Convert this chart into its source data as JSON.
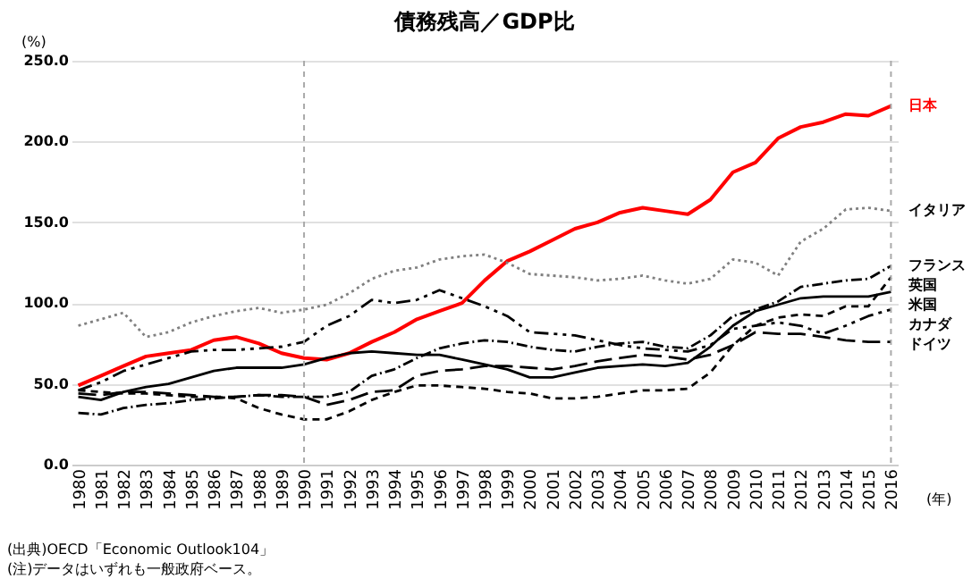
{
  "chart_data": {
    "type": "line",
    "title": "債務残高／GDP比",
    "ylabel": "(%)",
    "xlabel": "(年)",
    "categories": [
      "1980",
      "1981",
      "1982",
      "1983",
      "1984",
      "1985",
      "1986",
      "1987",
      "1988",
      "1989",
      "1990",
      "1991",
      "1992",
      "1993",
      "1994",
      "1995",
      "1996",
      "1997",
      "1998",
      "1999",
      "2000",
      "2001",
      "2002",
      "2003",
      "2004",
      "2005",
      "2006",
      "2007",
      "2008",
      "2009",
      "2010",
      "2011",
      "2012",
      "2013",
      "2014",
      "2015",
      "2016"
    ],
    "series": [
      {
        "name": "日本",
        "color": "#ff0000",
        "line_style": "solid",
        "values": [
          49,
          55,
          61,
          67,
          69,
          71,
          77,
          79,
          75,
          69,
          66,
          65,
          69,
          76,
          82,
          90,
          95,
          100,
          114,
          126,
          132,
          139,
          146,
          150,
          156,
          159,
          157,
          155,
          164,
          181,
          187,
          202,
          209,
          212,
          217,
          216,
          222
        ]
      },
      {
        "name": "イタリア",
        "color": "#808080",
        "line_style": "dotted",
        "values": [
          86,
          90,
          94,
          79,
          82,
          88,
          92,
          95,
          97,
          94,
          96,
          99,
          106,
          115,
          120,
          122,
          127,
          129,
          130,
          125,
          118,
          117,
          116,
          114,
          115,
          117,
          114,
          112,
          115,
          127,
          125,
          117,
          138,
          146,
          158,
          159,
          157
        ]
      },
      {
        "name": "フランス",
        "color": "#000000",
        "line_style": "dashed",
        "values": [
          32,
          31,
          35,
          37,
          38,
          40,
          41,
          42,
          43,
          42,
          42,
          42,
          45,
          55,
          59,
          66,
          72,
          75,
          77,
          76,
          73,
          71,
          70,
          73,
          75,
          76,
          73,
          72,
          80,
          92,
          96,
          101,
          110,
          112,
          114,
          115,
          123
        ]
      },
      {
        "name": "英国",
        "color": "#000000",
        "line_style": "dashed",
        "values": [
          46,
          45,
          44,
          44,
          43,
          42,
          42,
          41,
          35,
          31,
          28,
          28,
          33,
          40,
          45,
          49,
          49,
          48,
          47,
          45,
          44,
          41,
          41,
          42,
          44,
          46,
          46,
          47,
          57,
          74,
          86,
          91,
          93,
          92,
          98,
          98,
          116
        ]
      },
      {
        "name": "米国",
        "color": "#000000",
        "line_style": "solid",
        "values": [
          42,
          40,
          45,
          48,
          50,
          54,
          58,
          60,
          60,
          60,
          62,
          66,
          69,
          70,
          69,
          68,
          68,
          65,
          62,
          59,
          54,
          54,
          57,
          60,
          61,
          62,
          61,
          63,
          73,
          86,
          95,
          99,
          103,
          104,
          104,
          104,
          107
        ]
      },
      {
        "name": "カナダ",
        "color": "#000000",
        "line_style": "dashed",
        "values": [
          46,
          51,
          58,
          62,
          66,
          70,
          71,
          71,
          72,
          73,
          76,
          86,
          92,
          102,
          100,
          102,
          108,
          103,
          98,
          92,
          82,
          81,
          80,
          77,
          74,
          72,
          71,
          70,
          74,
          84,
          86,
          88,
          86,
          81,
          86,
          92,
          96
        ]
      },
      {
        "name": "ドイツ",
        "color": "#000000",
        "line_style": "dashed",
        "values": [
          44,
          43,
          45,
          45,
          44,
          43,
          42,
          42,
          43,
          43,
          42,
          37,
          40,
          45,
          46,
          55,
          58,
          59,
          61,
          61,
          60,
          59,
          61,
          64,
          66,
          68,
          67,
          65,
          68,
          74,
          82,
          81,
          81,
          79,
          77,
          76,
          76
        ]
      }
    ],
    "ylim": [
      0,
      250
    ],
    "yticks": [
      {
        "value": 0,
        "label": "0.0"
      },
      {
        "value": 50,
        "label": "50.0"
      },
      {
        "value": 100,
        "label": "100.0"
      },
      {
        "value": 150,
        "label": "150.0"
      },
      {
        "value": 200,
        "label": "200.0"
      },
      {
        "value": 250,
        "label": "250.0"
      }
    ],
    "grid": "y",
    "legend": false,
    "marker": "none",
    "ref_lines": [
      {
        "axis": "x",
        "value": "1990",
        "color": "#aaaaaa",
        "line_style": "dashed"
      },
      {
        "axis": "x",
        "value": "2016",
        "color": "#aaaaaa",
        "line_style": "dashed"
      }
    ],
    "annotations": [
      "(出典)OECD「Economic Outlook104」",
      "(注)データはいずれも一般政府ベース。"
    ]
  }
}
